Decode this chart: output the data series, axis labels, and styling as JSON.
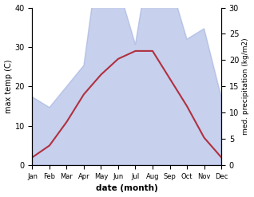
{
  "months": [
    "Jan",
    "Feb",
    "Mar",
    "Apr",
    "May",
    "Jun",
    "Jul",
    "Aug",
    "Sep",
    "Oct",
    "Nov",
    "Dec"
  ],
  "temp_max": [
    2,
    5,
    11,
    18,
    23,
    27,
    29,
    29,
    22,
    15,
    7,
    2
  ],
  "precipitation": [
    13,
    11,
    15,
    19,
    43,
    34,
    23,
    43,
    35,
    24,
    26,
    13
  ],
  "temp_ylim": [
    0,
    40
  ],
  "precip_ylim": [
    0,
    30
  ],
  "temp_color": "#b03040",
  "precip_fill_color": "#99aadd",
  "precip_fill_alpha": 0.55,
  "ylabel_left": "max temp (C)",
  "ylabel_right": "med. precipitation (kg/m2)",
  "xlabel": "date (month)",
  "bg_color": "#ffffff"
}
